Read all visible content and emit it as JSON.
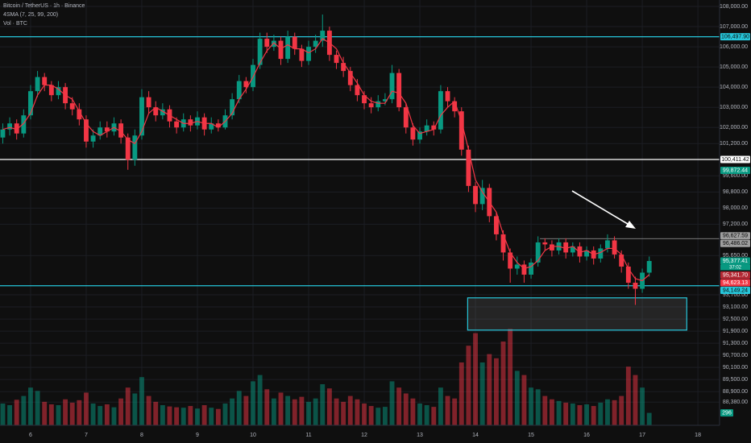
{
  "chart_data": {
    "type": "candlestick",
    "title": "Bitcoin / TetherUS · 1h · Binance",
    "indicator": "4SMA (7, 25, 99, 200)",
    "volume_label": "Vol · BTC",
    "up_color": "#089981",
    "down_color": "#f23645",
    "sma_color": "#f23645",
    "xlim": [
      5.45,
      18.39
    ],
    "xticks": [
      6,
      7,
      8,
      9,
      10,
      11,
      12,
      13,
      14,
      15,
      16,
      17,
      18
    ],
    "ylim": [
      87350,
      108320
    ],
    "y2lim": [
      0,
      2500
    ],
    "grid": true,
    "yticks": [
      {
        "value": 108000,
        "label": "108,000.00"
      },
      {
        "value": 107000,
        "label": "107,000.00"
      },
      {
        "value": 106000,
        "label": "106,000.00"
      },
      {
        "value": 105000,
        "label": "105,000.00"
      },
      {
        "value": 104000,
        "label": "104,000.00"
      },
      {
        "value": 103000,
        "label": "103,000.00"
      },
      {
        "value": 102000,
        "label": "102,000.00"
      },
      {
        "value": 101200,
        "label": "101,200.00"
      },
      {
        "value": 99600,
        "label": "99,600.00"
      },
      {
        "value": 98800,
        "label": "98,800.00"
      },
      {
        "value": 98000,
        "label": "98,000.00"
      },
      {
        "value": 97200,
        "label": "97,200.00"
      },
      {
        "value": 95650,
        "label": "95,650.00"
      },
      {
        "value": 93700,
        "label": "93,700.00"
      },
      {
        "value": 93100,
        "label": "93,100.00"
      },
      {
        "value": 92500,
        "label": "92,500.00"
      },
      {
        "value": 91900,
        "label": "91,900.00"
      },
      {
        "value": 91300,
        "label": "91,300.00"
      },
      {
        "value": 90700,
        "label": "90,700.00"
      },
      {
        "value": 90100,
        "label": "90,100.00"
      },
      {
        "value": 89500,
        "label": "89,500.00"
      },
      {
        "value": 88900,
        "label": "88,900.00"
      },
      {
        "value": 88380,
        "label": "88,380.00"
      }
    ],
    "x": [
      5.5,
      5.625,
      5.75,
      5.875,
      6,
      6.125,
      6.25,
      6.375,
      6.5,
      6.625,
      6.75,
      6.875,
      7,
      7.125,
      7.25,
      7.375,
      7.5,
      7.625,
      7.75,
      7.875,
      8,
      8.125,
      8.25,
      8.375,
      8.5,
      8.625,
      8.75,
      8.875,
      9,
      9.125,
      9.25,
      9.375,
      9.5,
      9.625,
      9.75,
      9.875,
      10,
      10.125,
      10.25,
      10.375,
      10.5,
      10.625,
      10.75,
      10.875,
      11,
      11.125,
      11.25,
      11.375,
      11.5,
      11.625,
      11.75,
      11.875,
      12,
      12.125,
      12.25,
      12.375,
      12.5,
      12.625,
      12.75,
      12.875,
      13,
      13.125,
      13.25,
      13.375,
      13.5,
      13.625,
      13.75,
      13.875,
      14,
      14.125,
      14.25,
      14.375,
      14.5,
      14.625,
      14.75,
      14.875,
      15,
      15.125,
      15.25,
      15.375,
      15.5,
      15.625,
      15.75,
      15.875,
      16,
      16.125,
      16.25,
      16.375,
      16.5,
      16.625,
      16.75,
      16.875,
      17,
      17.125
    ],
    "candles": [
      [
        101500,
        102200,
        101200,
        101900
      ],
      [
        101900,
        102500,
        101600,
        102200
      ],
      [
        102200,
        102400,
        101400,
        101700
      ],
      [
        101700,
        102900,
        101500,
        102600
      ],
      [
        102600,
        104100,
        102400,
        103800
      ],
      [
        103800,
        104800,
        103500,
        104500
      ],
      [
        104500,
        104700,
        103800,
        104100
      ],
      [
        104100,
        104300,
        103300,
        103600
      ],
      [
        103600,
        104300,
        103400,
        104000
      ],
      [
        104000,
        104200,
        102900,
        103200
      ],
      [
        103200,
        103500,
        102600,
        102900
      ],
      [
        102900,
        103200,
        102100,
        102400
      ],
      [
        102400,
        102600,
        101000,
        101300
      ],
      [
        101300,
        101900,
        101000,
        101600
      ],
      [
        101600,
        102300,
        101400,
        102000
      ],
      [
        102000,
        102300,
        101500,
        101800
      ],
      [
        101800,
        102500,
        101600,
        102200
      ],
      [
        102200,
        102400,
        101200,
        101500
      ],
      [
        101500,
        101700,
        99900,
        100400
      ],
      [
        100400,
        101900,
        100100,
        101600
      ],
      [
        101600,
        103900,
        101400,
        103500
      ],
      [
        103500,
        103800,
        102700,
        103000
      ],
      [
        103000,
        103300,
        102300,
        102600
      ],
      [
        102600,
        103200,
        102400,
        102900
      ],
      [
        102900,
        103100,
        102000,
        102300
      ],
      [
        102300,
        102500,
        101700,
        102000
      ],
      [
        102000,
        102700,
        101800,
        102400
      ],
      [
        102400,
        102600,
        101800,
        102100
      ],
      [
        102100,
        102800,
        101900,
        102500
      ],
      [
        102500,
        102700,
        101600,
        101900
      ],
      [
        101900,
        102500,
        101700,
        102200
      ],
      [
        102200,
        102400,
        101800,
        102000
      ],
      [
        102000,
        102900,
        101900,
        102600
      ],
      [
        102600,
        103700,
        102400,
        103400
      ],
      [
        103400,
        104600,
        103200,
        104300
      ],
      [
        104300,
        104500,
        103700,
        104000
      ],
      [
        104000,
        105400,
        103800,
        105100
      ],
      [
        105100,
        106700,
        104900,
        106400
      ],
      [
        106400,
        106700,
        105700,
        106000
      ],
      [
        106000,
        106600,
        105800,
        106300
      ],
      [
        106300,
        106500,
        105100,
        105400
      ],
      [
        105400,
        106800,
        105200,
        106500
      ],
      [
        106500,
        106700,
        105600,
        105900
      ],
      [
        105900,
        106100,
        105000,
        105300
      ],
      [
        105300,
        106300,
        105100,
        106000
      ],
      [
        106000,
        106600,
        105700,
        106300
      ],
      [
        106300,
        107600,
        106000,
        106800
      ],
      [
        106800,
        107000,
        105300,
        105600
      ],
      [
        105600,
        105800,
        104900,
        105200
      ],
      [
        105200,
        105500,
        104500,
        104800
      ],
      [
        104800,
        105000,
        103800,
        104100
      ],
      [
        104100,
        104400,
        103300,
        103600
      ],
      [
        103600,
        103800,
        102900,
        103200
      ],
      [
        103200,
        103500,
        102700,
        103000
      ],
      [
        103000,
        103600,
        102800,
        103300
      ],
      [
        103300,
        103700,
        103100,
        103400
      ],
      [
        103400,
        105100,
        103200,
        104700
      ],
      [
        104700,
        104900,
        102800,
        103000
      ],
      [
        103000,
        103200,
        101700,
        102000
      ],
      [
        102000,
        102200,
        101100,
        101400
      ],
      [
        101400,
        102000,
        101200,
        101800
      ],
      [
        101800,
        102400,
        101600,
        102100
      ],
      [
        102100,
        102300,
        101600,
        101900
      ],
      [
        101900,
        104100,
        101700,
        103800
      ],
      [
        103800,
        104000,
        103000,
        103300
      ],
      [
        103300,
        103500,
        102500,
        102800
      ],
      [
        102800,
        103000,
        100600,
        100900
      ],
      [
        100900,
        101100,
        98800,
        99100
      ],
      [
        99100,
        99300,
        97800,
        98200
      ],
      [
        98200,
        99400,
        97900,
        99000
      ],
      [
        99000,
        99200,
        97300,
        97600
      ],
      [
        97600,
        97800,
        96400,
        96700
      ],
      [
        96700,
        96900,
        95400,
        95800
      ],
      [
        95800,
        96000,
        94300,
        95000
      ],
      [
        95000,
        95600,
        94700,
        95200
      ],
      [
        95200,
        95400,
        94300,
        94700
      ],
      [
        94700,
        95500,
        94500,
        95300
      ],
      [
        95300,
        96600,
        95100,
        96300
      ],
      [
        96300,
        96500,
        95900,
        96200
      ],
      [
        96200,
        96400,
        95600,
        95900
      ],
      [
        95900,
        96500,
        95700,
        96300
      ],
      [
        96300,
        96500,
        95500,
        95800
      ],
      [
        95800,
        96300,
        95600,
        96100
      ],
      [
        96100,
        96300,
        95300,
        95600
      ],
      [
        95600,
        96100,
        95400,
        95900
      ],
      [
        95900,
        96100,
        95200,
        95500
      ],
      [
        95500,
        96200,
        95300,
        96000
      ],
      [
        96000,
        96700,
        95800,
        96400
      ],
      [
        96400,
        96600,
        95500,
        95700
      ],
      [
        95700,
        95900,
        94800,
        95100
      ],
      [
        95100,
        95300,
        94000,
        94300
      ],
      [
        94300,
        94600,
        93200,
        94000
      ],
      [
        94000,
        95000,
        93800,
        94800
      ],
      [
        94800,
        95600,
        94600,
        95377.41
      ]
    ],
    "volumes": [
      520,
      480,
      610,
      700,
      900,
      820,
      560,
      500,
      480,
      620,
      540,
      600,
      780,
      520,
      460,
      500,
      430,
      640,
      900,
      760,
      1150,
      700,
      560,
      480,
      450,
      430,
      420,
      460,
      400,
      480,
      420,
      390,
      520,
      640,
      820,
      700,
      1050,
      1200,
      860,
      640,
      780,
      700,
      620,
      680,
      560,
      640,
      980,
      880,
      640,
      560,
      700,
      620,
      520,
      460,
      420,
      440,
      1050,
      900,
      760,
      640,
      520,
      480,
      440,
      900,
      700,
      640,
      1500,
      1900,
      2200,
      1500,
      1700,
      1600,
      2000,
      2300,
      1300,
      1200,
      900,
      860,
      700,
      620,
      580,
      540,
      520,
      480,
      500,
      460,
      540,
      620,
      600,
      700,
      1400,
      1200,
      900,
      296
    ],
    "sma": [
      101900,
      102000,
      101900,
      102200,
      102700,
      103600,
      104100,
      104100,
      103900,
      103600,
      103400,
      102800,
      102200,
      101800,
      101600,
      101800,
      102000,
      101800,
      101400,
      101200,
      101800,
      102700,
      103000,
      102800,
      102600,
      102400,
      102200,
      102200,
      102300,
      102200,
      102200,
      102000,
      102300,
      102700,
      103400,
      103900,
      104500,
      105200,
      105800,
      106200,
      105900,
      106100,
      105900,
      105900,
      105700,
      105900,
      106400,
      106200,
      105900,
      105200,
      104700,
      104200,
      103600,
      103300,
      103200,
      103200,
      103800,
      103700,
      103200,
      102100,
      101700,
      101800,
      101900,
      102600,
      103000,
      103300,
      102300,
      100900,
      99400,
      98800,
      98300,
      97800,
      96700,
      95800,
      95300,
      95000,
      95100,
      95400,
      95900,
      96100,
      96100,
      96000,
      96100,
      95800,
      95900,
      95700,
      95800,
      96000,
      96000,
      95700,
      95000,
      94500,
      94400,
      94700
    ],
    "levels": [
      {
        "value": 106497.9,
        "label": "106,497.90",
        "color": "#26c6da",
        "text_color": "#0b0b0b",
        "line": true
      },
      {
        "value": 100411.42,
        "label": "100,411.42",
        "color": "#ffffff",
        "text_color": "#0b0b0b",
        "line": true
      },
      {
        "value": 99872.44,
        "label": "99,872.44",
        "color": "#089981",
        "text_color": "#ffffff",
        "line": false
      },
      {
        "value": 96627.59,
        "label": "96,627.59",
        "color": "#9e9e9e",
        "text_color": "#0b0b0b",
        "line": false
      },
      {
        "value": 96486.02,
        "label": "96,486.02",
        "color": "#9e9e9e",
        "text_color": "#0b0b0b",
        "line": true,
        "from": 15.16
      },
      {
        "value": 95377.41,
        "label": "95,377.41",
        "color": "#089981",
        "text_color": "#ffffff",
        "line": false
      },
      {
        "value": 95341.7,
        "label": "95,341.70",
        "color": "#b22833",
        "text_color": "#ffffff",
        "line": false
      },
      {
        "value": 94623.13,
        "label": "94,623.13",
        "color": "#f23645",
        "text_color": "#ffffff",
        "line": false
      },
      {
        "value": 94149.24,
        "label": "94,149.24",
        "color": "#26c6da",
        "text_color": "#0b0b0b",
        "line": true
      }
    ],
    "countdown": "37:02",
    "zone": {
      "x": [
        13.86,
        17.8
      ],
      "y": [
        91950,
        93550
      ]
    }
  }
}
